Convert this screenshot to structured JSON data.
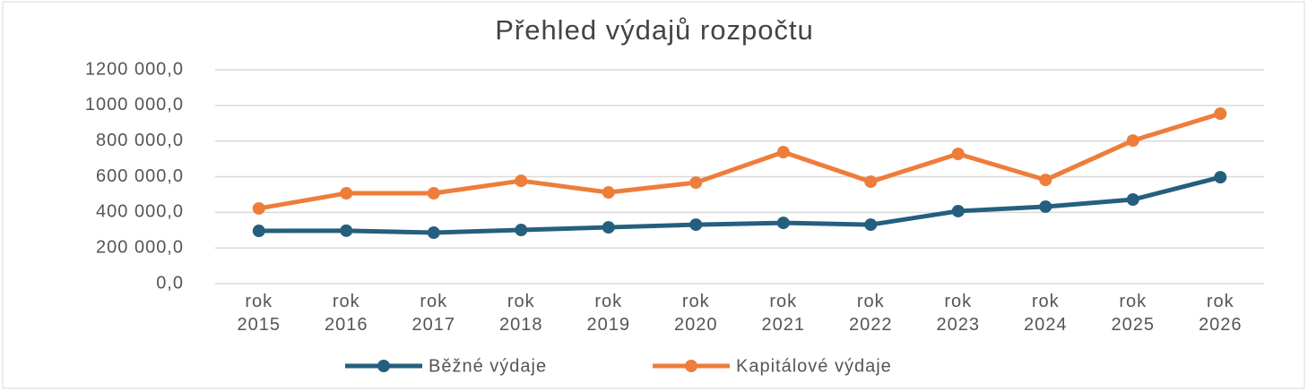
{
  "chart_data": {
    "type": "line",
    "title": "Přehled výdajů rozpočtu",
    "categories": [
      "rok 2015",
      "rok 2016",
      "rok 2017",
      "rok 2018",
      "rok 2019",
      "rok 2020",
      "rok 2021",
      "rok 2022",
      "rok 2023",
      "rok 2024",
      "rok 2025",
      "rok 2026"
    ],
    "series": [
      {
        "name": "Běžné výdaje",
        "color": "#245f7e",
        "values": [
          296000,
          297000,
          286000,
          301000,
          316000,
          331000,
          341000,
          331000,
          407000,
          432000,
          472000,
          597000
        ]
      },
      {
        "name": "Kapitálové výdaje",
        "color": "#ee7d3b",
        "values": [
          422000,
          507000,
          507000,
          577000,
          512000,
          567000,
          738000,
          572000,
          728000,
          582000,
          803000,
          954000
        ]
      }
    ],
    "ylim": [
      0,
      1200000
    ],
    "yticks": [
      {
        "value": 0,
        "label": "0,0"
      },
      {
        "value": 200000,
        "label": "200 000,0"
      },
      {
        "value": 400000,
        "label": "400 000,0"
      },
      {
        "value": 600000,
        "label": "600 000,0"
      },
      {
        "value": 800000,
        "label": "800 000,0"
      },
      {
        "value": 1000000,
        "label": "1000 000,0"
      },
      {
        "value": 1200000,
        "label": "1200 000,0"
      }
    ],
    "grid": true,
    "legend": "bottom"
  }
}
